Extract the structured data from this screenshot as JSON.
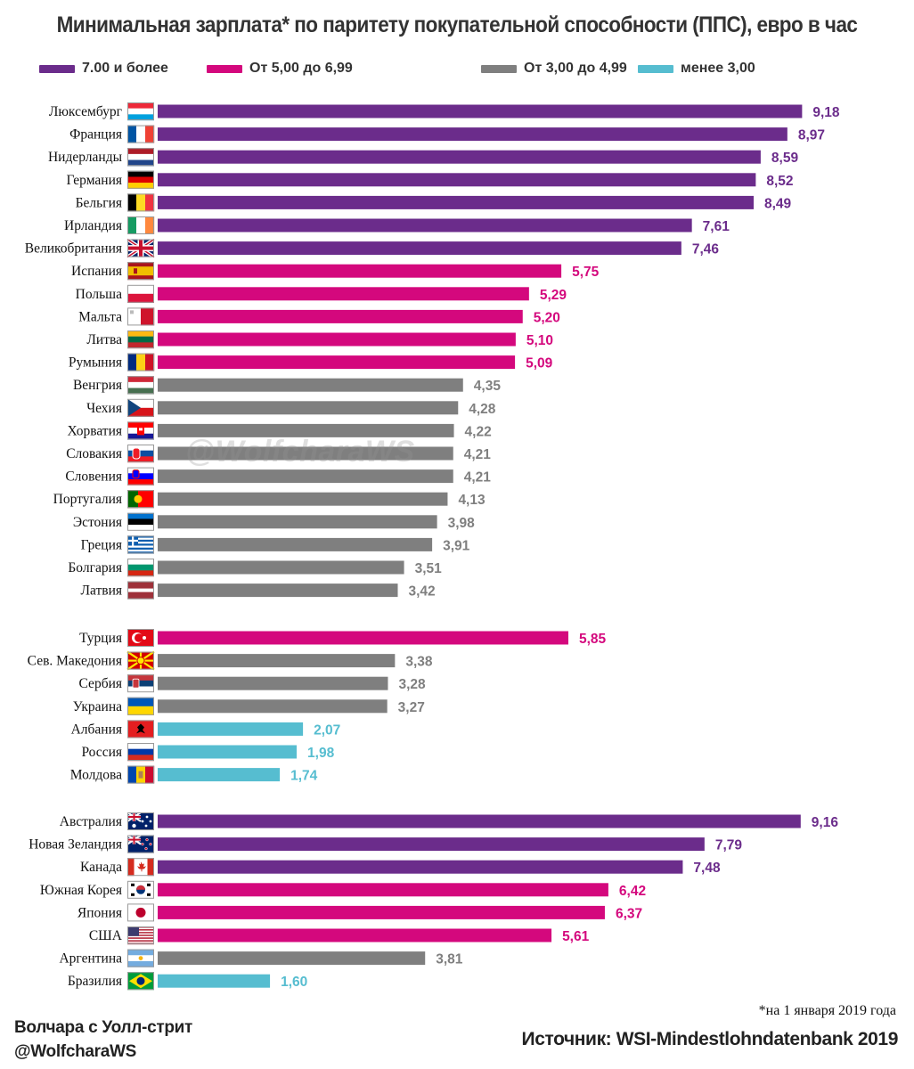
{
  "title": "Минимальная зарплата* по паритету покупательной способности (ППС), евро в час",
  "legend": [
    {
      "label": "7.00 и более",
      "color": "#6b2c8b"
    },
    {
      "label": "От 5,00 до 6,99",
      "color": "#d4087d"
    },
    {
      "label": "От 3,00 до 4,99",
      "color": "#7f7f7f"
    },
    {
      "label": "менее 3,00",
      "color": "#56bdd0"
    }
  ],
  "watermark": "@WolfcharaWS",
  "footnote": "*на 1 января 2019 года",
  "author": {
    "line1": "Волчара с Уолл-стрит",
    "line2": "@WolfcharaWS"
  },
  "source": "Источник: WSI-Mindestlohndatenbank 2019",
  "colors": {
    "purple": "#6b2c8b",
    "pink": "#d4087d",
    "gray": "#7f7f7f",
    "cyan": "#56bdd0",
    "text": "#333333"
  },
  "chart_data": {
    "type": "bar",
    "orientation": "horizontal",
    "value_format": "comma-2-decimals",
    "groups": [
      {
        "categories": [
          "Люксембург",
          "Франция",
          "Нидерланды",
          "Германия",
          "Бельгия",
          "Ирландия",
          "Великобритания",
          "Испания",
          "Польша",
          "Мальта",
          "Литва",
          "Румыния",
          "Венгрия",
          "Чехия",
          "Хорватия",
          "Словакия",
          "Словения",
          "Португалия",
          "Эстония",
          "Греция",
          "Болгария",
          "Латвия"
        ],
        "values": [
          9.18,
          8.97,
          8.59,
          8.52,
          8.49,
          7.61,
          7.46,
          5.75,
          5.29,
          5.2,
          5.1,
          5.09,
          4.35,
          4.28,
          4.22,
          4.21,
          4.21,
          4.13,
          3.98,
          3.91,
          3.51,
          3.42
        ],
        "flags": [
          "luxembourg",
          "france",
          "netherlands",
          "germany",
          "belgium",
          "ireland",
          "uk",
          "spain",
          "poland",
          "malta",
          "lithuania",
          "romania",
          "hungary",
          "czech",
          "croatia",
          "slovakia",
          "slovenia",
          "portugal",
          "estonia",
          "greece",
          "bulgaria",
          "latvia"
        ]
      },
      {
        "categories": [
          "Турция",
          "Сев. Македония",
          "Сербия",
          "Украина",
          "Албания",
          "Россия",
          "Молдова"
        ],
        "values": [
          5.85,
          3.38,
          3.28,
          3.27,
          2.07,
          1.98,
          1.74
        ],
        "flags": [
          "turkey",
          "north-macedonia",
          "serbia",
          "ukraine",
          "albania",
          "russia",
          "moldova"
        ]
      },
      {
        "categories": [
          "Австралия",
          "Новая Зеландия",
          "Канада",
          "Южная Корея",
          "Япония",
          "США",
          "Аргентина",
          "Бразилия"
        ],
        "values": [
          9.16,
          7.79,
          7.48,
          6.42,
          6.37,
          5.61,
          3.81,
          1.6
        ],
        "flags": [
          "australia",
          "new-zealand",
          "canada",
          "south-korea",
          "japan",
          "usa",
          "argentina",
          "brazil"
        ]
      }
    ],
    "color_thresholds": [
      {
        "min": 7.0,
        "color": "#6b2c8b"
      },
      {
        "min": 5.0,
        "color": "#d4087d"
      },
      {
        "min": 3.0,
        "color": "#7f7f7f"
      },
      {
        "min": 0,
        "color": "#56bdd0"
      }
    ],
    "title": "Минимальная зарплата* по паритету покупательной способности (ППС), евро в час",
    "grid": false,
    "legend_position": "top"
  }
}
